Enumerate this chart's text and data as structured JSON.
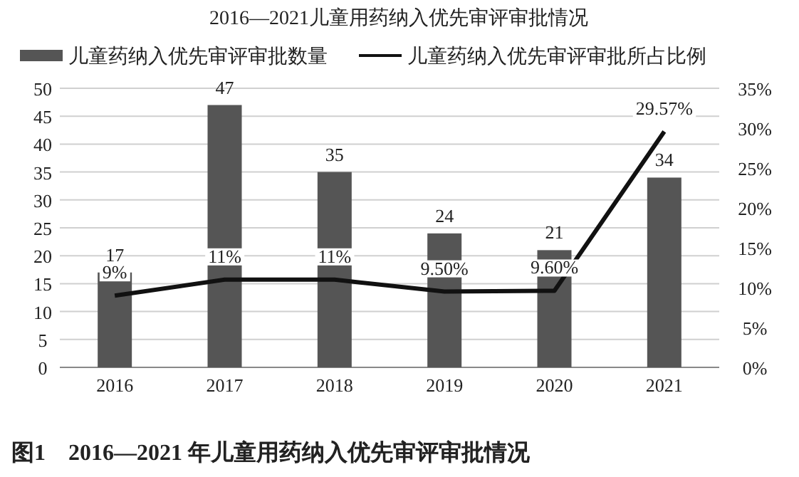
{
  "chart_data": {
    "type": "bar",
    "title": "2016—2021儿童用药纳入优先审评审批情况",
    "categories": [
      "2016",
      "2017",
      "2018",
      "2019",
      "2020",
      "2021"
    ],
    "series": [
      {
        "name": "儿童药纳入优先审评审批数量",
        "color": "#555555",
        "values": [
          17,
          47,
          35,
          24,
          21,
          34
        ],
        "value_labels": [
          "17",
          "47",
          "35",
          "24",
          "21",
          "34"
        ]
      },
      {
        "name": "儿童药纳入优先审评审批所占比例",
        "type": "line",
        "axis": "y2",
        "color": "#111111",
        "values": [
          9,
          11,
          11,
          9.5,
          9.6,
          29.57
        ],
        "value_labels": [
          "9%",
          "11%",
          "11%",
          "9.50%",
          "9.60%",
          "29.57%"
        ]
      }
    ],
    "ylim": [
      0,
      50
    ],
    "yticks": [
      0,
      5,
      10,
      15,
      20,
      25,
      30,
      35,
      40,
      45,
      50
    ],
    "y2lim": [
      0,
      35
    ],
    "y2ticks": [
      {
        "value": 0,
        "label": "0%"
      },
      {
        "value": 5,
        "label": "5%"
      },
      {
        "value": 10,
        "label": "10%"
      },
      {
        "value": 15,
        "label": "15%"
      },
      {
        "value": 20,
        "label": "20%"
      },
      {
        "value": 25,
        "label": "25%"
      },
      {
        "value": 30,
        "label": "30%"
      },
      {
        "value": 35,
        "label": "35%"
      }
    ],
    "grid": "y",
    "legend": "top",
    "annotations": [
      "图1　2016—2021 年儿童用药纳入优先审评审批情况"
    ]
  }
}
